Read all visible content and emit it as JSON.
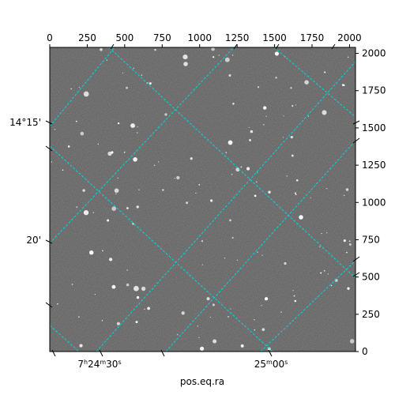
{
  "chart_data": {
    "type": "image-wcs",
    "xlabel": "pos.eq.ra",
    "pixel_x_ticks": [
      0,
      250,
      500,
      750,
      1000,
      1250,
      1500,
      1750,
      2000
    ],
    "pixel_y_ticks": [
      0,
      250,
      500,
      750,
      1000,
      1250,
      1500,
      1750,
      2000
    ],
    "pixel_xlim": [
      0,
      2040
    ],
    "pixel_ylim": [
      0,
      2040
    ],
    "ra_tick_labels": [
      "7h24m30s",
      "25m00s"
    ],
    "dec_tick_labels": [
      "14°15'",
      "20'"
    ],
    "grid_color": "#00d5d5",
    "grid": true,
    "image_colormap": "gray",
    "background_gray": "#5f5f5f"
  }
}
